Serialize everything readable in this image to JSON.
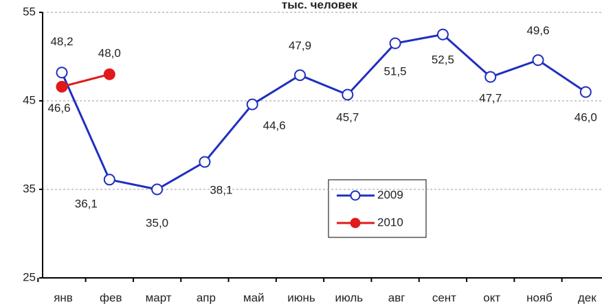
{
  "chart_data": {
    "type": "line",
    "title": "тыс. человек",
    "categories": [
      "янв",
      "фев",
      "март",
      "апр",
      "май",
      "июнь",
      "июль",
      "авг",
      "сент",
      "окт",
      "нояб",
      "дек"
    ],
    "ylim": [
      25,
      55
    ],
    "yticks": [
      25,
      35,
      45,
      55
    ],
    "grid": true,
    "series": [
      {
        "name": "2009",
        "color": "#1f2fbf",
        "marker": "open",
        "values": [
          48.2,
          36.1,
          35.0,
          38.1,
          44.6,
          47.9,
          45.7,
          51.5,
          52.5,
          47.7,
          49.6,
          46.0
        ],
        "value_labels": [
          "48,2",
          "36,1",
          "35,0",
          "38,1",
          "44,6",
          "47,9",
          "45,7",
          "51,5",
          "52,5",
          "47,7",
          "49,6",
          "46,0"
        ]
      },
      {
        "name": "2010",
        "color": "#e0191b",
        "marker": "filled",
        "values": [
          46.6,
          48.0,
          null,
          null,
          null,
          null,
          null,
          null,
          null,
          null,
          null,
          null
        ],
        "value_labels": [
          "46,6",
          "48,0",
          null,
          null,
          null,
          null,
          null,
          null,
          null,
          null,
          null,
          null
        ]
      }
    ]
  }
}
